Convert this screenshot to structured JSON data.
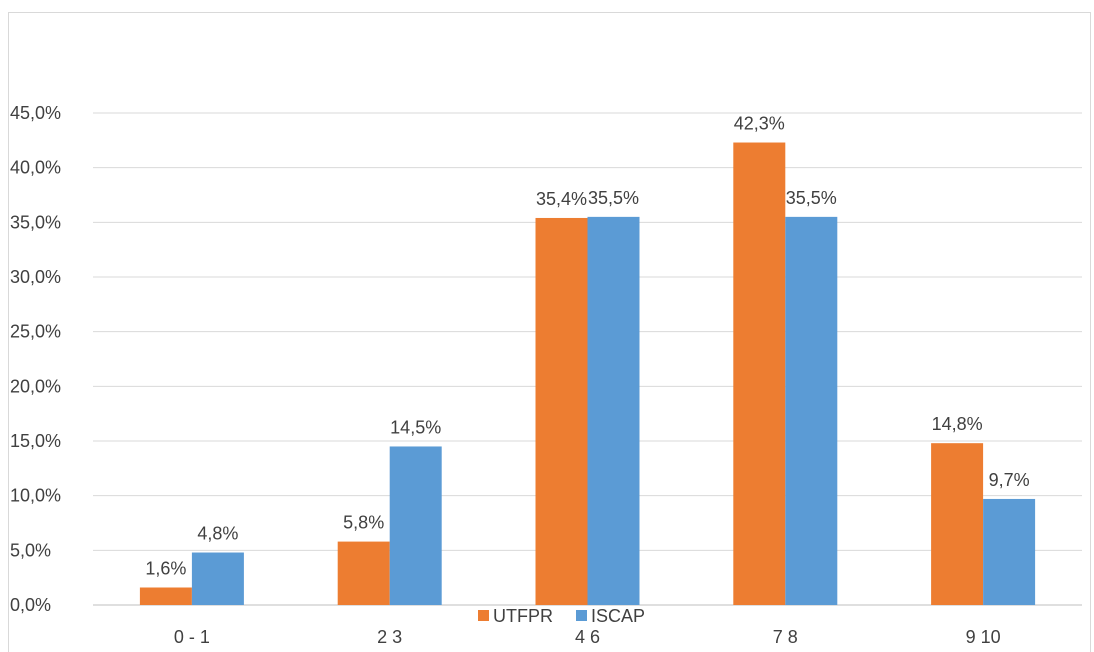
{
  "chart_data": {
    "type": "bar",
    "title": "",
    "xlabel": "",
    "ylabel": "",
    "categories": [
      "0 - 1",
      "2 3",
      "4 6",
      "7 8",
      "9 10"
    ],
    "series": [
      {
        "name": "UTFPR",
        "color": "#ED7D31",
        "values": [
          1.6,
          5.8,
          35.4,
          42.3,
          14.8
        ],
        "labels": [
          "1,6%",
          "5,8%",
          "35,4%",
          "42,3%",
          "14,8%"
        ]
      },
      {
        "name": "ISCAP",
        "color": "#5B9BD5",
        "values": [
          4.8,
          14.5,
          35.5,
          35.5,
          9.7
        ],
        "labels": [
          "4,8%",
          "14,5%",
          "35,5%",
          "35,5%",
          "9,7%"
        ]
      }
    ],
    "ylim": [
      0,
      45
    ],
    "yticks": [
      0,
      5,
      10,
      15,
      20,
      25,
      30,
      35,
      40,
      45
    ],
    "ytick_labels": [
      "0,0%",
      "5,0%",
      "10,0%",
      "15,0%",
      "20,0%",
      "25,0%",
      "30,0%",
      "35,0%",
      "40,0%",
      "45,0%"
    ],
    "grid": true,
    "legend_position": "bottom"
  }
}
